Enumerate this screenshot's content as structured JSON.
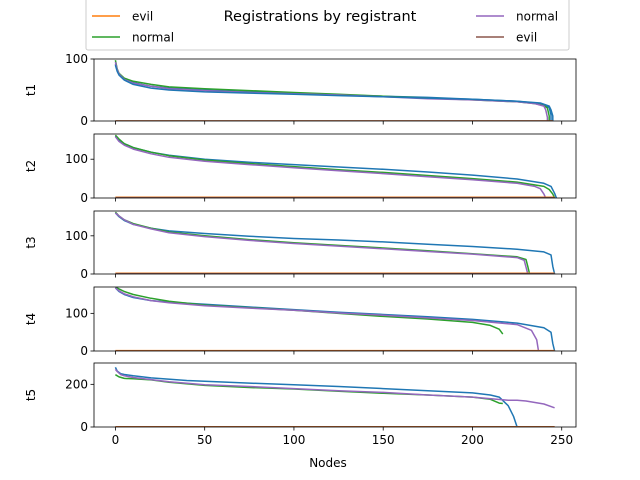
{
  "title": "Registrations by registrant",
  "xlabel": "Nodes",
  "legend": {
    "placement": "top",
    "entries": [
      {
        "label": "evil",
        "color": "#ff7f0e"
      },
      {
        "label": "normal",
        "color": "#2ca02c"
      },
      {
        "label": "normal",
        "color": "#9467bd"
      },
      {
        "label": "evil",
        "color": "#8c564b"
      }
    ]
  },
  "x_ticks": [
    "0",
    "50",
    "100",
    "150",
    "200",
    "250"
  ],
  "colors": {
    "blue": "#1f77b4",
    "orange": "#ff7f0e",
    "green": "#2ca02c",
    "purple": "#9467bd",
    "brown": "#8c564b"
  },
  "chart_data": [
    {
      "type": "line",
      "ylabel": "t1",
      "xlim": [
        -12,
        258
      ],
      "ylim": [
        0,
        100
      ],
      "y_ticks": [
        0,
        100
      ],
      "series": [
        {
          "color": "#1f77b4",
          "x": [
            0,
            1,
            2,
            5,
            10,
            20,
            30,
            50,
            75,
            100,
            125,
            150,
            175,
            200,
            225,
            235,
            240,
            243,
            244,
            244
          ],
          "y": [
            92,
            82,
            76,
            68,
            62,
            56,
            53,
            50,
            47,
            45,
            42,
            40,
            38,
            35,
            32,
            29,
            26,
            22,
            10,
            0
          ]
        },
        {
          "color": "#2ca02c",
          "x": [
            0,
            1,
            2,
            5,
            10,
            20,
            30,
            50,
            75,
            100,
            125,
            150,
            175,
            200,
            225,
            235,
            240,
            242,
            243,
            243
          ],
          "y": [
            98,
            84,
            77,
            69,
            64,
            59,
            55,
            52,
            49,
            46,
            43,
            40,
            37,
            34,
            31,
            28,
            25,
            21,
            8,
            0
          ]
        },
        {
          "color": "#9467bd",
          "x": [
            0,
            1,
            2,
            5,
            10,
            20,
            30,
            50,
            75,
            100,
            125,
            150,
            175,
            200,
            225,
            235,
            240,
            241,
            242,
            242
          ],
          "y": [
            95,
            83,
            76,
            67,
            61,
            56,
            52,
            49,
            46,
            44,
            42,
            39,
            36,
            34,
            31,
            28,
            24,
            18,
            6,
            0
          ]
        },
        {
          "color": "#1f77b4",
          "x": [
            0,
            1,
            2,
            5,
            10,
            20,
            30,
            50,
            75,
            100,
            125,
            150,
            175,
            200,
            225,
            238,
            243,
            244,
            245,
            245
          ],
          "y": [
            90,
            80,
            74,
            66,
            59,
            53,
            50,
            47,
            45,
            43,
            41,
            39,
            37,
            35,
            32,
            29,
            24,
            18,
            8,
            0
          ]
        },
        {
          "color": "#ff7f0e",
          "x": [
            0,
            245
          ],
          "y": [
            0,
            0
          ]
        },
        {
          "color": "#8c564b",
          "x": [
            0,
            245
          ],
          "y": [
            0,
            0
          ]
        }
      ]
    },
    {
      "type": "line",
      "ylabel": "t2",
      "xlim": [
        -12,
        258
      ],
      "ylim": [
        0,
        165
      ],
      "y_ticks": [
        0,
        100
      ],
      "series": [
        {
          "color": "#1f77b4",
          "x": [
            0,
            2,
            5,
            10,
            20,
            30,
            50,
            75,
            100,
            125,
            150,
            175,
            200,
            225,
            240,
            244,
            246,
            247
          ],
          "y": [
            160,
            148,
            140,
            130,
            118,
            110,
            100,
            92,
            86,
            80,
            74,
            67,
            59,
            49,
            38,
            30,
            12,
            0
          ]
        },
        {
          "color": "#2ca02c",
          "x": [
            0,
            2,
            5,
            10,
            20,
            30,
            50,
            75,
            100,
            125,
            150,
            175,
            200,
            225,
            240,
            243,
            245,
            246
          ],
          "y": [
            162,
            152,
            140,
            130,
            118,
            109,
            98,
            89,
            81,
            73,
            66,
            58,
            50,
            41,
            30,
            22,
            10,
            0
          ]
        },
        {
          "color": "#9467bd",
          "x": [
            0,
            2,
            5,
            10,
            20,
            30,
            50,
            75,
            100,
            125,
            150,
            175,
            200,
            225,
            235,
            238,
            240,
            241
          ],
          "y": [
            158,
            146,
            136,
            126,
            114,
            105,
            95,
            86,
            78,
            70,
            63,
            55,
            47,
            38,
            30,
            24,
            10,
            0
          ]
        },
        {
          "color": "#ff7f0e",
          "x": [
            0,
            246
          ],
          "y": [
            2,
            2
          ]
        },
        {
          "color": "#8c564b",
          "x": [
            0,
            246
          ],
          "y": [
            1,
            1
          ]
        }
      ]
    },
    {
      "type": "line",
      "ylabel": "t3",
      "xlim": [
        -12,
        258
      ],
      "ylim": [
        0,
        165
      ],
      "y_ticks": [
        0,
        100
      ],
      "series": [
        {
          "color": "#1f77b4",
          "x": [
            0,
            2,
            5,
            10,
            20,
            30,
            50,
            75,
            100,
            125,
            150,
            175,
            200,
            225,
            240,
            244,
            245,
            246
          ],
          "y": [
            160,
            150,
            140,
            130,
            120,
            113,
            106,
            99,
            93,
            89,
            84,
            78,
            72,
            65,
            58,
            50,
            20,
            0
          ]
        },
        {
          "color": "#2ca02c",
          "x": [
            0,
            2,
            5,
            10,
            20,
            30,
            50,
            75,
            100,
            125,
            150,
            175,
            200,
            225,
            230,
            231,
            232
          ],
          "y": [
            162,
            152,
            142,
            132,
            120,
            110,
            100,
            90,
            82,
            75,
            68,
            61,
            53,
            45,
            38,
            20,
            0
          ]
        },
        {
          "color": "#9467bd",
          "x": [
            0,
            2,
            5,
            10,
            20,
            30,
            50,
            75,
            100,
            125,
            150,
            175,
            200,
            225,
            229,
            230,
            231
          ],
          "y": [
            160,
            152,
            142,
            130,
            118,
            108,
            98,
            88,
            80,
            73,
            66,
            59,
            52,
            43,
            36,
            18,
            0
          ]
        },
        {
          "color": "#ff7f0e",
          "x": [
            0,
            246
          ],
          "y": [
            2,
            2
          ]
        },
        {
          "color": "#8c564b",
          "x": [
            0,
            246
          ],
          "y": [
            1,
            1
          ]
        }
      ]
    },
    {
      "type": "line",
      "ylabel": "t4",
      "xlim": [
        -12,
        258
      ],
      "ylim": [
        0,
        170
      ],
      "y_ticks": [
        0,
        100
      ],
      "series": [
        {
          "color": "#1f77b4",
          "x": [
            0,
            2,
            5,
            10,
            20,
            30,
            50,
            75,
            100,
            125,
            150,
            175,
            200,
            225,
            240,
            244,
            245,
            246
          ],
          "y": [
            168,
            158,
            150,
            142,
            134,
            130,
            124,
            117,
            110,
            103,
            97,
            91,
            84,
            74,
            62,
            50,
            20,
            0
          ]
        },
        {
          "color": "#2ca02c",
          "x": [
            0,
            2,
            5,
            10,
            20,
            30,
            50,
            75,
            100,
            125,
            150,
            175,
            200,
            210,
            215,
            217
          ],
          "y": [
            170,
            165,
            158,
            150,
            140,
            132,
            122,
            115,
            108,
            100,
            92,
            85,
            76,
            68,
            58,
            45
          ]
        },
        {
          "color": "#9467bd",
          "x": [
            0,
            2,
            5,
            10,
            20,
            30,
            50,
            75,
            100,
            125,
            150,
            175,
            200,
            225,
            233,
            236,
            237
          ],
          "y": [
            168,
            160,
            152,
            144,
            134,
            128,
            120,
            114,
            108,
            101,
            95,
            88,
            81,
            70,
            55,
            30,
            0
          ]
        },
        {
          "color": "#ff7f0e",
          "x": [
            0,
            246
          ],
          "y": [
            1,
            1
          ]
        },
        {
          "color": "#8c564b",
          "x": [
            0,
            246
          ],
          "y": [
            0,
            0
          ]
        }
      ]
    },
    {
      "type": "line",
      "ylabel": "t5",
      "xlim": [
        -12,
        258
      ],
      "ylim": [
        0,
        300
      ],
      "y_ticks": [
        0,
        200
      ],
      "series": [
        {
          "color": "#1f77b4",
          "x": [
            0,
            1,
            3,
            5,
            10,
            20,
            40,
            50,
            75,
            100,
            125,
            150,
            175,
            200,
            210,
            215,
            220,
            223,
            225
          ],
          "y": [
            280,
            262,
            250,
            246,
            240,
            230,
            218,
            214,
            206,
            198,
            190,
            180,
            170,
            160,
            150,
            140,
            100,
            50,
            0
          ]
        },
        {
          "color": "#2ca02c",
          "x": [
            0,
            2,
            5,
            10,
            20,
            30,
            50,
            75,
            100,
            125,
            150,
            175,
            200,
            210,
            215,
            217
          ],
          "y": [
            245,
            235,
            228,
            226,
            221,
            210,
            195,
            185,
            178,
            168,
            158,
            150,
            140,
            130,
            112,
            110
          ]
        },
        {
          "color": "#9467bd",
          "x": [
            0,
            1,
            3,
            5,
            10,
            20,
            30,
            50,
            75,
            100,
            125,
            150,
            175,
            200,
            220,
            225,
            230,
            240,
            246
          ],
          "y": [
            270,
            260,
            245,
            240,
            232,
            222,
            212,
            198,
            190,
            180,
            170,
            162,
            150,
            140,
            125,
            125,
            122,
            108,
            90
          ]
        },
        {
          "color": "#ff7f0e",
          "x": [
            0,
            246
          ],
          "y": [
            1,
            1
          ]
        },
        {
          "color": "#8c564b",
          "x": [
            0,
            246
          ],
          "y": [
            0,
            0
          ]
        }
      ]
    }
  ]
}
